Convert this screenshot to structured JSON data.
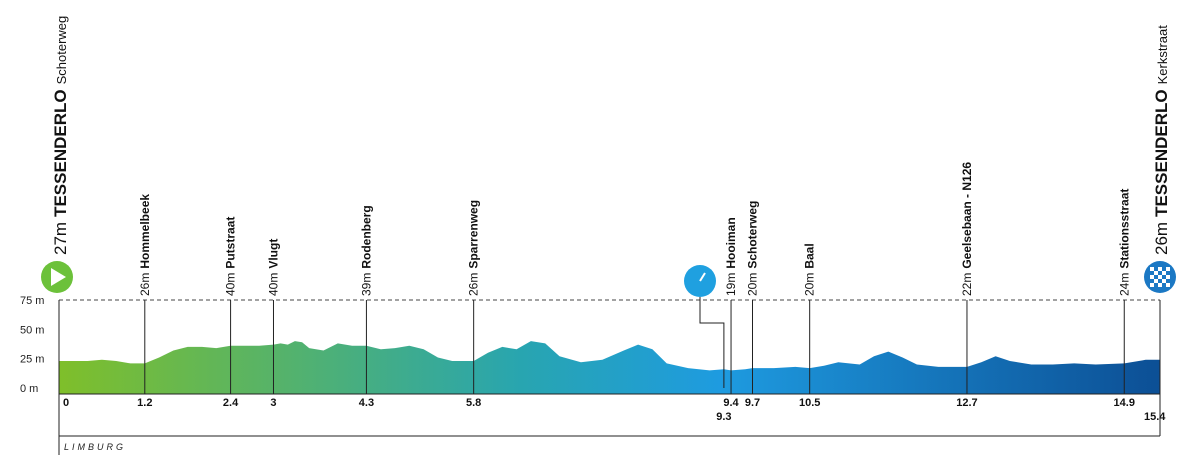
{
  "colors": {
    "gradient_start": "#7fbf2a",
    "gradient_mid": "#28a5b0",
    "gradient_mid2": "#1e9be0",
    "gradient_end": "#0c4f95",
    "start_marker": "#6cc13a",
    "timing_marker": "#1fa0e0",
    "finish_marker": "#1b78c4",
    "line": "#222222",
    "dashed": "#444444",
    "axis_text": "#222222"
  },
  "region_label": "LIMBURG",
  "start": {
    "altitude": "27m",
    "town": "TESSENDERLO",
    "street": "Schoterweg",
    "icon": "play-triangle-icon"
  },
  "finish": {
    "altitude": "26m",
    "town": "TESSENDERLO",
    "street": "Kerkstraat",
    "icon": "checkered-flag-icon"
  },
  "timing": {
    "icon": "stopwatch-icon",
    "km": 9.3,
    "label": "9.3"
  },
  "chart_data": {
    "type": "area",
    "x_unit": "km",
    "y_unit": "m",
    "xlim": [
      0,
      15.4
    ],
    "ylim": [
      0,
      75
    ],
    "y_ticks": [
      "0 m",
      "25 m",
      "50 m",
      "75 m"
    ],
    "y_tick_values": [
      0,
      25,
      50,
      75
    ],
    "grid": false,
    "profile": [
      [
        0,
        23
      ],
      [
        0.4,
        23
      ],
      [
        0.6,
        24
      ],
      [
        0.8,
        23
      ],
      [
        1.0,
        21
      ],
      [
        1.2,
        21
      ],
      [
        1.4,
        26
      ],
      [
        1.6,
        32
      ],
      [
        1.8,
        35
      ],
      [
        2.0,
        35
      ],
      [
        2.2,
        34
      ],
      [
        2.4,
        36
      ],
      [
        2.6,
        36
      ],
      [
        2.8,
        36
      ],
      [
        3.0,
        37
      ],
      [
        3.1,
        38
      ],
      [
        3.2,
        37
      ],
      [
        3.3,
        40
      ],
      [
        3.4,
        39
      ],
      [
        3.5,
        34
      ],
      [
        3.7,
        32
      ],
      [
        3.9,
        38
      ],
      [
        4.1,
        36
      ],
      [
        4.3,
        36
      ],
      [
        4.5,
        33
      ],
      [
        4.7,
        34
      ],
      [
        4.9,
        36
      ],
      [
        5.1,
        33
      ],
      [
        5.3,
        26
      ],
      [
        5.5,
        23
      ],
      [
        5.8,
        23
      ],
      [
        6.0,
        30
      ],
      [
        6.2,
        35
      ],
      [
        6.4,
        33
      ],
      [
        6.6,
        40
      ],
      [
        6.8,
        38
      ],
      [
        7.0,
        27
      ],
      [
        7.3,
        22
      ],
      [
        7.6,
        24
      ],
      [
        7.9,
        32
      ],
      [
        8.1,
        37
      ],
      [
        8.3,
        33
      ],
      [
        8.5,
        21
      ],
      [
        8.8,
        17
      ],
      [
        9.1,
        15
      ],
      [
        9.3,
        16
      ],
      [
        9.4,
        15
      ],
      [
        9.6,
        16
      ],
      [
        9.7,
        17
      ],
      [
        10.0,
        17
      ],
      [
        10.3,
        18
      ],
      [
        10.5,
        17
      ],
      [
        10.7,
        19
      ],
      [
        10.9,
        22
      ],
      [
        11.2,
        20
      ],
      [
        11.4,
        27
      ],
      [
        11.6,
        31
      ],
      [
        11.8,
        26
      ],
      [
        12.0,
        20
      ],
      [
        12.3,
        18
      ],
      [
        12.7,
        18
      ],
      [
        12.9,
        22
      ],
      [
        13.1,
        27
      ],
      [
        13.3,
        23
      ],
      [
        13.6,
        20
      ],
      [
        13.9,
        20
      ],
      [
        14.2,
        21
      ],
      [
        14.5,
        20
      ],
      [
        14.9,
        21
      ],
      [
        15.2,
        24
      ],
      [
        15.4,
        24
      ]
    ],
    "waypoints": [
      {
        "km": 1.2,
        "km_label": "1.2",
        "altitude": "26m",
        "name": "Hommelbeek"
      },
      {
        "km": 2.4,
        "km_label": "2.4",
        "altitude": "40m",
        "name": "Putstraat"
      },
      {
        "km": 3,
        "km_label": "3",
        "altitude": "40m",
        "name": "Vlugt"
      },
      {
        "km": 4.3,
        "km_label": "4.3",
        "altitude": "39m",
        "name": "Rodenberg"
      },
      {
        "km": 5.8,
        "km_label": "5.8",
        "altitude": "26m",
        "name": "Sparrenweg"
      },
      {
        "km": 9.4,
        "km_label": "9.4",
        "altitude": "19m",
        "name": "Hooiman"
      },
      {
        "km": 9.7,
        "km_label": "9.7",
        "altitude": "20m",
        "name": "Schoterweg"
      },
      {
        "km": 10.5,
        "km_label": "10.5",
        "altitude": "20m",
        "name": "Baal"
      },
      {
        "km": 12.7,
        "km_label": "12.7",
        "altitude": "22m",
        "name": "Geelsebaan - N126"
      },
      {
        "km": 14.9,
        "km_label": "14.9",
        "altitude": "24m",
        "name": "Stationsstraat"
      }
    ],
    "axis_labels": [
      {
        "km": 0,
        "label": "0"
      },
      {
        "km": 15.4,
        "label": "15.4"
      }
    ]
  }
}
